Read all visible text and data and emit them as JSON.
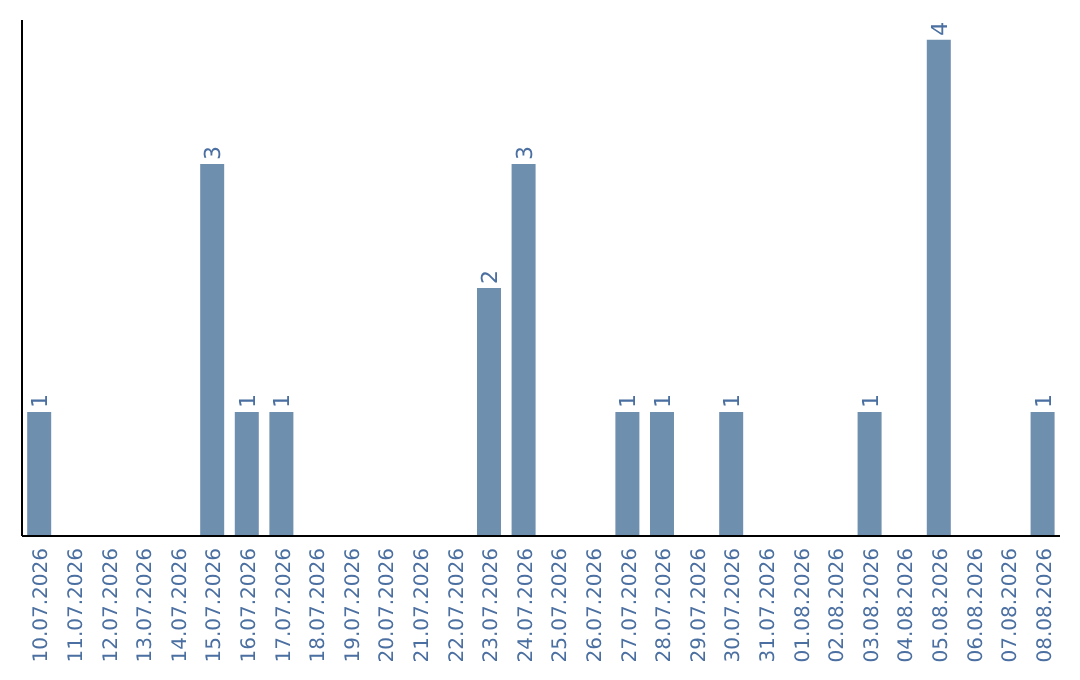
{
  "chart_data": {
    "type": "bar",
    "categories": [
      "10.07.2026",
      "11.07.2026",
      "12.07.2026",
      "13.07.2026",
      "14.07.2026",
      "15.07.2026",
      "16.07.2026",
      "17.07.2026",
      "18.07.2026",
      "19.07.2026",
      "20.07.2026",
      "21.07.2026",
      "22.07.2026",
      "23.07.2026",
      "24.07.2026",
      "25.07.2026",
      "26.07.2026",
      "27.07.2026",
      "28.07.2026",
      "29.07.2026",
      "30.07.2026",
      "31.07.2026",
      "01.08.2026",
      "02.08.2026",
      "03.08.2026",
      "04.08.2026",
      "05.08.2026",
      "06.08.2026",
      "07.08.2026",
      "08.08.2026"
    ],
    "values": [
      1,
      0,
      0,
      0,
      0,
      3,
      1,
      1,
      0,
      0,
      0,
      0,
      0,
      2,
      3,
      0,
      0,
      1,
      1,
      0,
      1,
      0,
      0,
      0,
      1,
      0,
      4,
      0,
      0,
      1
    ],
    "value_labels": [
      "1",
      null,
      null,
      null,
      null,
      "3",
      "1",
      "1",
      null,
      null,
      null,
      null,
      null,
      "2",
      "3",
      null,
      null,
      "1",
      "1",
      null,
      "1",
      null,
      null,
      null,
      "1",
      null,
      "4",
      null,
      null,
      "1"
    ],
    "color": "#6f8fae"
  }
}
